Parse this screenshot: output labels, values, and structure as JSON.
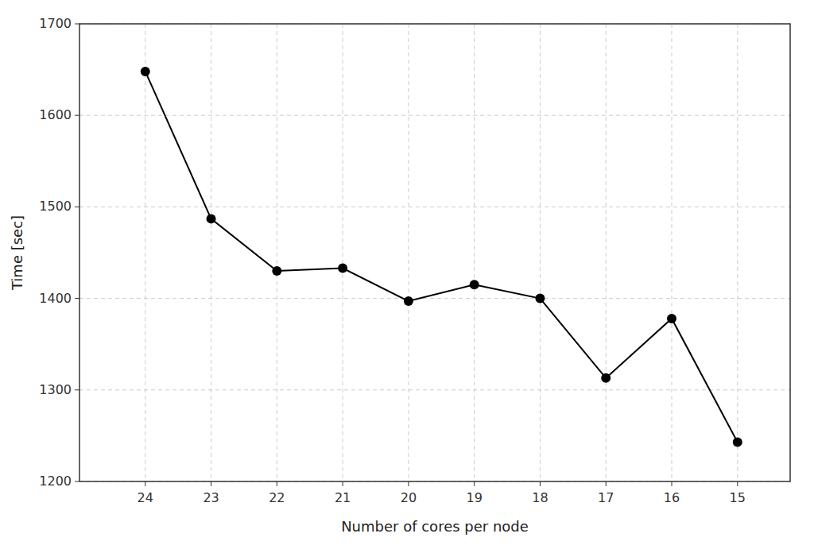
{
  "chart_data": {
    "type": "line",
    "x": [
      24,
      23,
      22,
      21,
      20,
      19,
      18,
      17,
      16,
      15
    ],
    "values": [
      1648,
      1487,
      1430,
      1433,
      1397,
      1415,
      1400,
      1313,
      1378,
      1243
    ],
    "xlabel": "Number of cores per node",
    "ylabel": "Time [sec]",
    "xlim": [
      25.0,
      14.2
    ],
    "ylim": [
      1200,
      1700
    ],
    "xticks": [
      24,
      23,
      22,
      21,
      20,
      19,
      18,
      17,
      16,
      15
    ],
    "yticks": [
      1200,
      1300,
      1400,
      1500,
      1600,
      1700
    ],
    "color": "#000000",
    "marker": "circle",
    "grid": true
  }
}
